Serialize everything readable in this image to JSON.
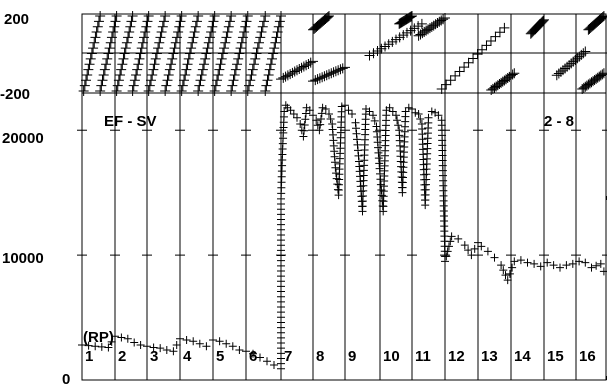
{
  "chart_data": [
    {
      "type": "scatter",
      "panel": "top",
      "title": "",
      "ylim": [
        -200,
        200
      ],
      "y_ticks": [
        "200",
        "-200"
      ],
      "x_divisions": [
        1,
        2,
        3,
        4,
        5,
        6,
        7,
        8,
        9,
        10,
        11,
        12,
        13,
        14,
        15,
        16
      ],
      "grid": true,
      "marker": "+",
      "description_series": "wrapping phase-like bands",
      "bands": [
        {
          "seg": 1,
          "x0": 1.05,
          "x1": 1.55,
          "y0": -190,
          "y1": 190
        },
        {
          "seg": 1,
          "x0": 1.55,
          "x1": 2.05,
          "y0": -190,
          "y1": 190
        },
        {
          "seg": 2,
          "x0": 2.05,
          "x1": 2.55,
          "y0": -190,
          "y1": 190
        },
        {
          "seg": 2,
          "x0": 2.55,
          "x1": 3.05,
          "y0": -190,
          "y1": 190
        },
        {
          "seg": 3,
          "x0": 3.05,
          "x1": 3.55,
          "y0": -190,
          "y1": 190
        },
        {
          "seg": 3,
          "x0": 3.55,
          "x1": 4.05,
          "y0": -190,
          "y1": 190
        },
        {
          "seg": 4,
          "x0": 4.05,
          "x1": 4.55,
          "y0": -190,
          "y1": 190
        },
        {
          "seg": 4,
          "x0": 4.55,
          "x1": 5.05,
          "y0": -190,
          "y1": 190
        },
        {
          "seg": 5,
          "x0": 5.05,
          "x1": 5.55,
          "y0": -190,
          "y1": 190
        },
        {
          "seg": 5,
          "x0": 5.55,
          "x1": 6.05,
          "y0": -190,
          "y1": 190
        },
        {
          "seg": 6,
          "x0": 6.05,
          "x1": 6.55,
          "y0": -190,
          "y1": 190
        },
        {
          "seg": 6,
          "x0": 6.55,
          "x1": 7.0,
          "y0": -190,
          "y1": 190
        },
        {
          "seg": 7,
          "x0": 7.0,
          "x1": 8.0,
          "y0": -130,
          "y1": -40
        },
        {
          "seg": 8,
          "x0": 8.0,
          "x1": 8.5,
          "y0": 120,
          "y1": 190
        },
        {
          "seg": 8,
          "x0": 8.0,
          "x1": 9.0,
          "y0": -140,
          "y1": -70
        },
        {
          "seg": 9,
          "x0": 9.7,
          "x1": 11.3,
          "y0": -10,
          "y1": 150
        },
        {
          "seg": 10,
          "x0": 10.6,
          "x1": 11.0,
          "y0": 150,
          "y1": 190
        },
        {
          "seg": 11,
          "x0": 11.2,
          "x1": 12.0,
          "y0": 90,
          "y1": 180
        },
        {
          "seg": 12,
          "x0": 11.9,
          "x1": 13.8,
          "y0": -180,
          "y1": 130
        },
        {
          "seg": 13,
          "x0": 13.4,
          "x1": 14.1,
          "y0": -185,
          "y1": -100
        },
        {
          "seg": 14,
          "x0": 14.6,
          "x1": 15.0,
          "y0": 100,
          "y1": 170
        },
        {
          "seg": 15,
          "x0": 15.4,
          "x1": 16.3,
          "y0": -110,
          "y1": 10
        },
        {
          "seg": 16,
          "x0": 16.4,
          "x1": 16.9,
          "y0": 120,
          "y1": 190
        },
        {
          "seg": 16,
          "x0": 16.2,
          "x1": 16.9,
          "y0": -180,
          "y1": -100
        }
      ]
    },
    {
      "type": "scatter",
      "panel": "bottom",
      "title": "EF - SV",
      "corner_label": "2 - 8",
      "annotation": "(RP)",
      "ylim": [
        0,
        22500
      ],
      "y_ticks": [
        {
          "value": 0,
          "label": "0"
        },
        {
          "value": 10000,
          "label": "10000"
        },
        {
          "value": 20000,
          "label": "20000"
        }
      ],
      "x_divisions": [
        1,
        2,
        3,
        4,
        5,
        6,
        7,
        8,
        9,
        10,
        11,
        12,
        13,
        14,
        15,
        16
      ],
      "segment_labels": [
        "1",
        "2",
        "3",
        "4",
        "5",
        "6",
        "7",
        "8",
        "9",
        "10",
        "11",
        "12",
        "13",
        "14",
        "15",
        "16"
      ],
      "grid": true,
      "marker": "+",
      "x": [
        1.0,
        1.2,
        1.4,
        1.6,
        1.8,
        2.0,
        2.2,
        2.4,
        2.6,
        2.8,
        3.0,
        3.2,
        3.4,
        3.6,
        3.8,
        4.0,
        4.2,
        4.4,
        4.6,
        4.8,
        5.0,
        5.2,
        5.4,
        5.6,
        5.8,
        6.0,
        6.2,
        6.4,
        6.6,
        6.8,
        7.0,
        7.0,
        7.05,
        7.1,
        7.15,
        7.2,
        7.3,
        7.4,
        7.5,
        7.6,
        7.7,
        7.8,
        7.9,
        8.0,
        8.1,
        8.2,
        8.3,
        8.4,
        8.5,
        8.6,
        8.7,
        8.8,
        8.9,
        9.0,
        9.1,
        9.2,
        9.3,
        9.4,
        9.5,
        9.6,
        9.7,
        9.8,
        9.9,
        10.0,
        10.1,
        10.2,
        10.3,
        10.4,
        10.5,
        10.6,
        10.7,
        10.8,
        10.9,
        11.0,
        11.1,
        11.2,
        11.3,
        11.4,
        11.5,
        11.6,
        11.7,
        11.8,
        11.9,
        12.0,
        12.2,
        12.4,
        12.6,
        12.8,
        13.0,
        13.1,
        13.3,
        13.5,
        13.7,
        13.9,
        14.1,
        14.3,
        14.5,
        14.7,
        14.9,
        15.1,
        15.3,
        15.5,
        15.7,
        15.9,
        16.1,
        16.3,
        16.5,
        16.8,
        16.9
      ],
      "y": [
        2800,
        2750,
        2700,
        2650,
        2600,
        3500,
        3400,
        3300,
        3000,
        2800,
        2700,
        2600,
        2550,
        2400,
        2300,
        3300,
        3200,
        3100,
        2900,
        2700,
        3200,
        3100,
        2900,
        2700,
        2400,
        2300,
        2100,
        1800,
        1500,
        1200,
        900,
        14500,
        18500,
        21500,
        22000,
        21800,
        21600,
        21300,
        21000,
        20500,
        19500,
        21800,
        21600,
        21200,
        20800,
        20000,
        21800,
        21700,
        21300,
        20500,
        17000,
        14800,
        21900,
        22000,
        21600,
        21300,
        20600,
        17500,
        13500,
        21700,
        21500,
        21200,
        20300,
        16500,
        13500,
        21600,
        21800,
        21500,
        21200,
        20000,
        15000,
        21500,
        21800,
        21700,
        21400,
        21300,
        20500,
        14000,
        21000,
        21500,
        21400,
        21200,
        20800,
        9500,
        11500,
        11300,
        10800,
        10000,
        11000,
        10700,
        10300,
        9800,
        9200,
        8000,
        9500,
        9600,
        9400,
        9300,
        9100,
        9400,
        9200,
        9000,
        9200,
        9300,
        9500,
        9400,
        9000,
        9300,
        8700
      ]
    }
  ]
}
